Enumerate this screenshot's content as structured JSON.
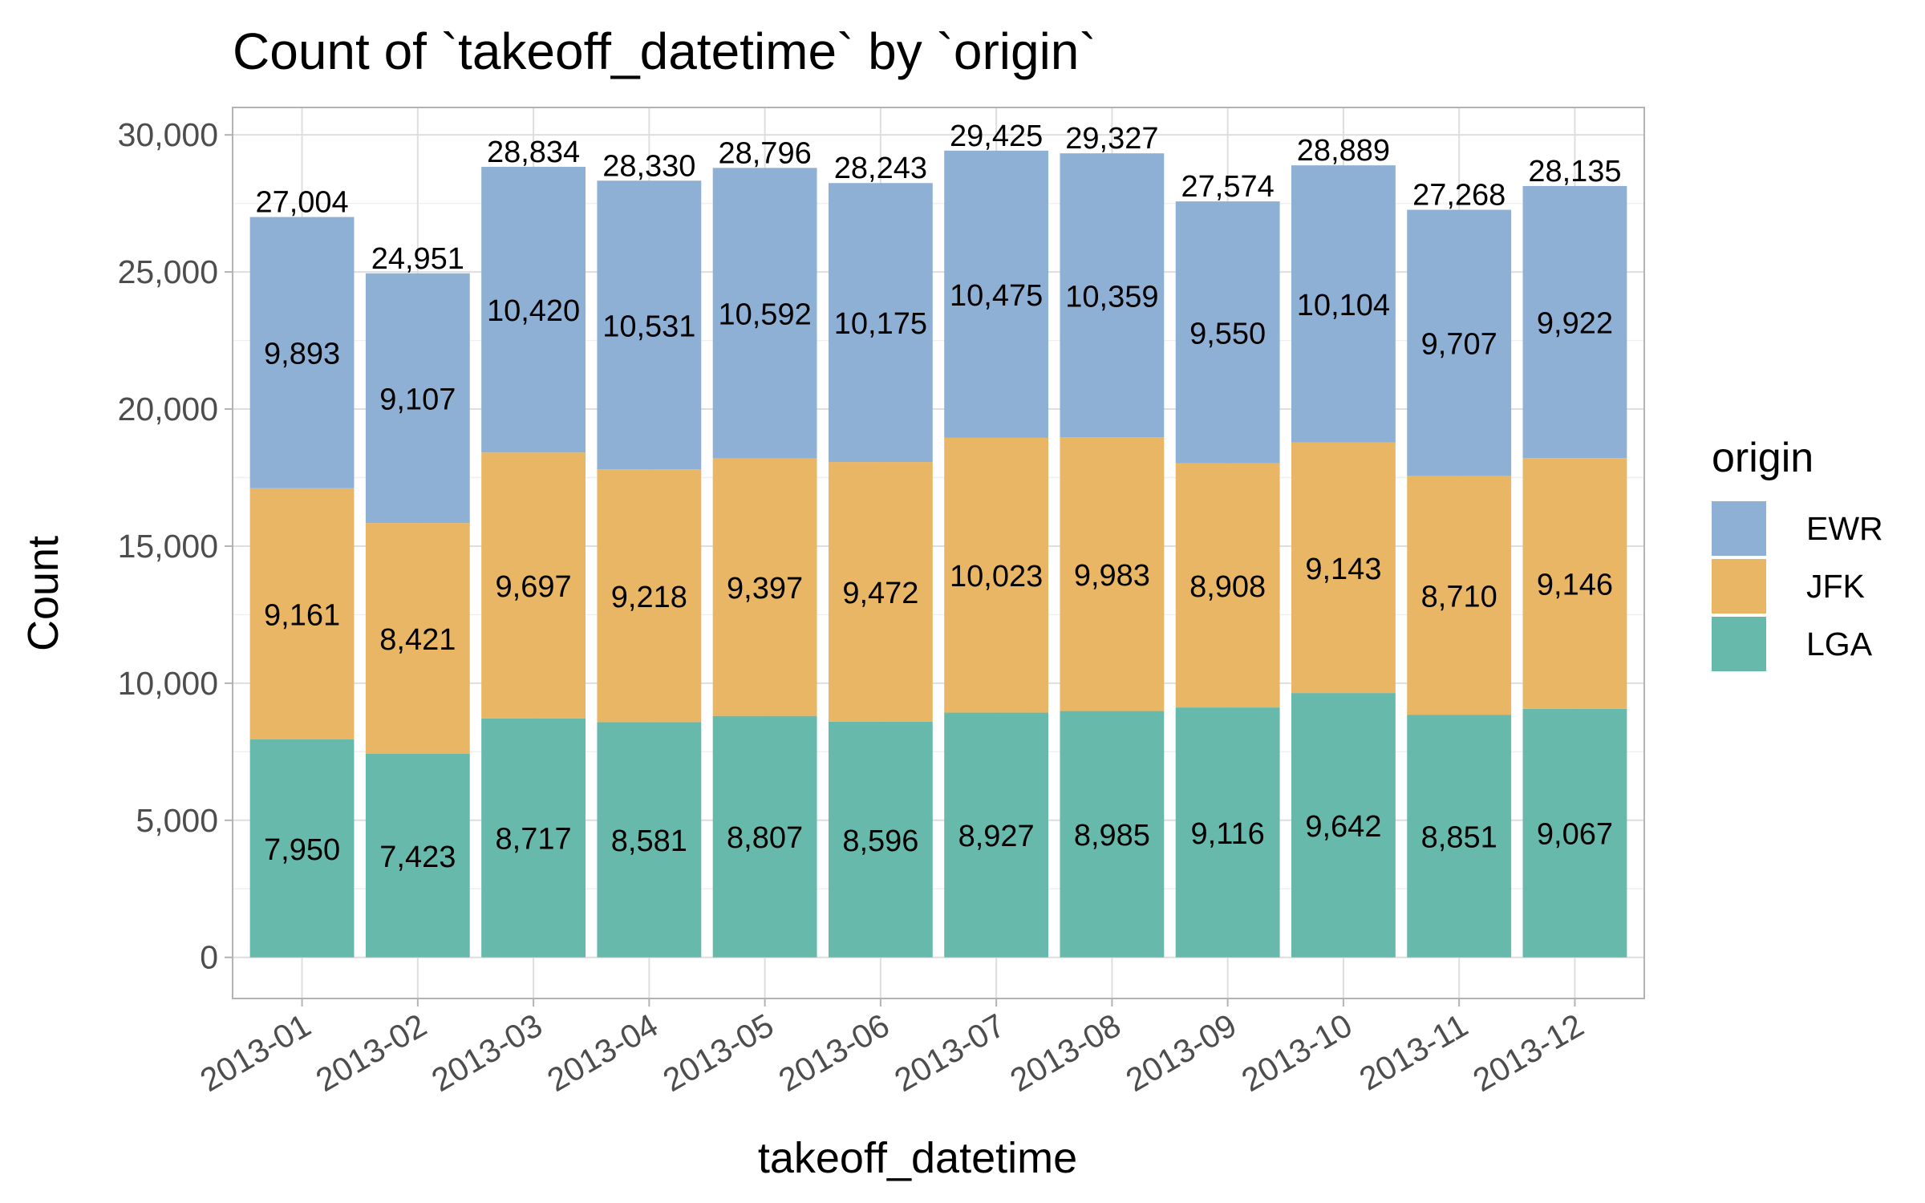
{
  "chart_data": {
    "type": "bar",
    "stacked": true,
    "title": "Count of `takeoff_datetime` by `origin`",
    "xlabel": "takeoff_datetime",
    "ylabel": "Count",
    "categories": [
      "2013-01",
      "2013-02",
      "2013-03",
      "2013-04",
      "2013-05",
      "2013-06",
      "2013-07",
      "2013-08",
      "2013-09",
      "2013-10",
      "2013-11",
      "2013-12"
    ],
    "ylim": [
      -1500,
      31000
    ],
    "yticks": [
      0,
      5000,
      10000,
      15000,
      20000,
      25000,
      30000
    ],
    "ytick_labels": [
      "0",
      "5,000",
      "10,000",
      "15,000",
      "20,000",
      "25,000",
      "30,000"
    ],
    "grid": true,
    "legend": {
      "title": "origin",
      "position": "right"
    },
    "series": [
      {
        "name": "LGA",
        "color": "#66b9ab",
        "values": [
          7950,
          7423,
          8717,
          8581,
          8807,
          8596,
          8927,
          8985,
          9116,
          9642,
          8851,
          9067
        ],
        "labels": [
          "7,950",
          "7,423",
          "8,717",
          "8,581",
          "8,807",
          "8,596",
          "8,927",
          "8,985",
          "9,116",
          "9,642",
          "8,851",
          "9,067"
        ]
      },
      {
        "name": "JFK",
        "color": "#e8b664",
        "values": [
          9161,
          8421,
          9697,
          9218,
          9397,
          9472,
          10023,
          9983,
          8908,
          9143,
          8710,
          9146
        ],
        "labels": [
          "9,161",
          "8,421",
          "9,697",
          "9,218",
          "9,397",
          "9,472",
          "10,023",
          "9,983",
          "8,908",
          "9,143",
          "8,710",
          "9,146"
        ]
      },
      {
        "name": "EWR",
        "color": "#8eb0d5",
        "values": [
          9893,
          9107,
          10420,
          10531,
          10592,
          10175,
          10475,
          10359,
          9550,
          10104,
          9707,
          9922
        ],
        "labels": [
          "9,893",
          "9,107",
          "10,420",
          "10,531",
          "10,592",
          "10,175",
          "10,475",
          "10,359",
          "9,550",
          "10,104",
          "9,707",
          "9,922"
        ]
      }
    ],
    "totals": [
      27004,
      24951,
      28834,
      28330,
      28796,
      28243,
      29425,
      29327,
      27574,
      28889,
      27268,
      28135
    ],
    "total_labels": [
      "27,004",
      "24,951",
      "28,834",
      "28,330",
      "28,796",
      "28,243",
      "29,425",
      "29,327",
      "27,574",
      "28,889",
      "27,268",
      "28,135"
    ],
    "legend_order": [
      "EWR",
      "JFK",
      "LGA"
    ]
  }
}
